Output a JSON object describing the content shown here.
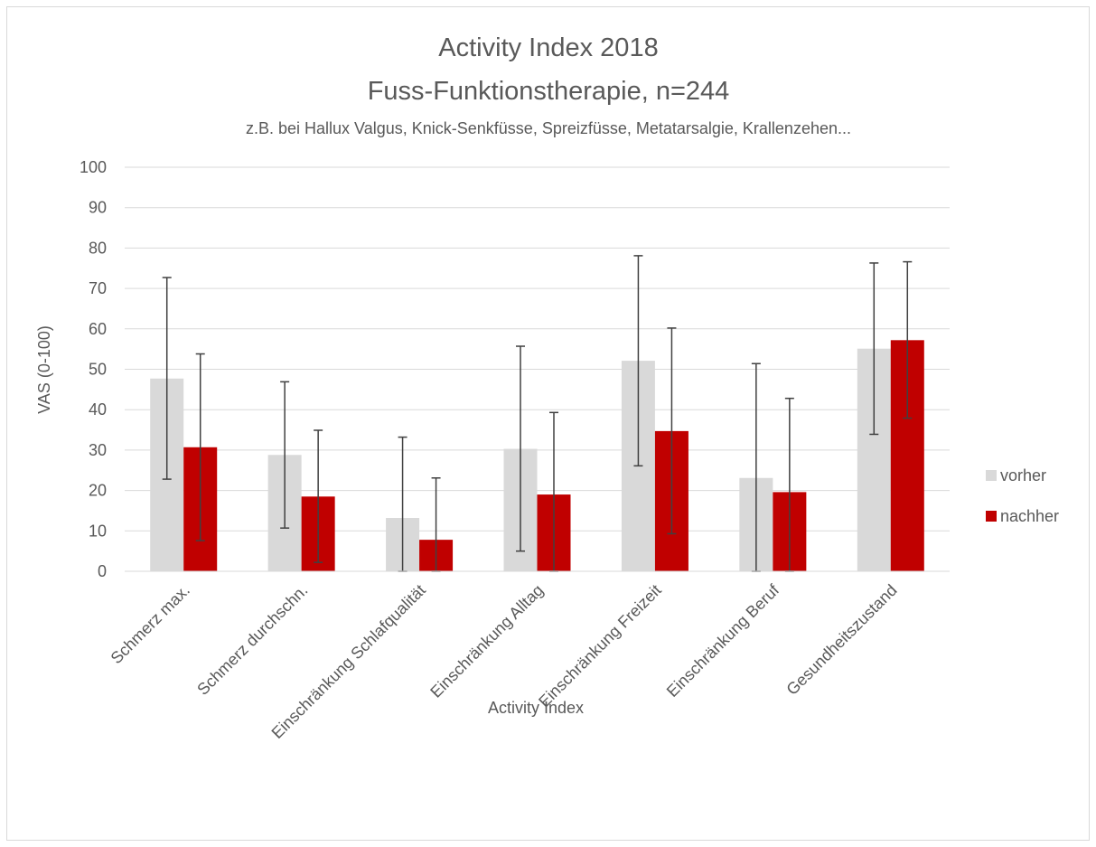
{
  "chart_data": {
    "type": "bar",
    "title": "Activity Index 2018",
    "title_line2": "Fuss-Funktionstherapie, n=244",
    "subtitle": "z.B. bei Hallux Valgus, Knick-Senkfüsse, Spreizfüsse, Metatarsalgie, Krallenzehen...",
    "xlabel": "Activity Index",
    "ylabel": "VAS (0-100)",
    "ylim": [
      0,
      100
    ],
    "yticks": [
      0,
      10,
      20,
      30,
      40,
      50,
      60,
      70,
      80,
      90,
      100
    ],
    "grid": true,
    "legend_position": "right",
    "categories": [
      "Schmerz max.",
      "Schmerz durchschn.",
      "Einschränkung Schlafqualität",
      "Einschränkung Alltag",
      "Einschränkung Freizeit",
      "Einschränkung Beruf",
      "Gesundheitszustand"
    ],
    "series": [
      {
        "name": "vorher",
        "color": "#d9d9d9",
        "values": [
          47.7,
          28.8,
          13.2,
          30.3,
          52.1,
          23.1,
          55.1
        ],
        "error_low": [
          22.8,
          10.7,
          0,
          5.0,
          26.1,
          0,
          33.9
        ],
        "error_high": [
          72.7,
          46.9,
          33.2,
          55.7,
          78.1,
          51.4,
          76.3
        ]
      },
      {
        "name": "nachher",
        "color": "#c00000",
        "values": [
          30.7,
          18.5,
          7.8,
          19.0,
          34.7,
          19.6,
          57.2
        ],
        "error_low": [
          7.6,
          2.2,
          0,
          0,
          9.3,
          0,
          37.9
        ],
        "error_high": [
          53.8,
          34.9,
          23.1,
          39.3,
          60.2,
          42.8,
          76.6
        ]
      }
    ]
  }
}
